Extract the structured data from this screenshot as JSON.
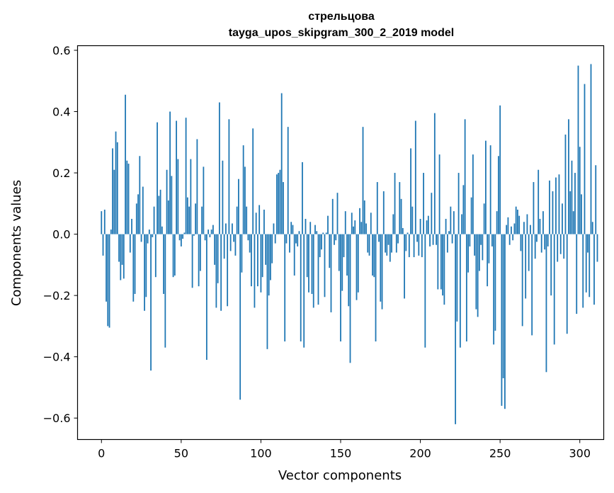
{
  "chart_data": {
    "type": "bar",
    "title": "стрельцова",
    "subtitle": "tayga_upos_skipgram_300_2_2019 model",
    "xlabel": "Vector components",
    "ylabel": "Components values",
    "xlim": [
      -15,
      315
    ],
    "ylim": [
      -0.67,
      0.615
    ],
    "xticks": [
      0,
      50,
      100,
      150,
      200,
      250,
      300
    ],
    "yticks": [
      -0.6,
      -0.4,
      -0.2,
      0.0,
      0.2,
      0.4,
      0.6
    ],
    "ytick_labels": [
      "−0.6",
      "−0.4",
      "−0.2",
      "0.0",
      "0.2",
      "0.4",
      "0.6"
    ],
    "bar_color": "#1f77b4",
    "values": [
      0.075,
      -0.07,
      0.08,
      -0.22,
      -0.3,
      -0.305,
      0.015,
      0.28,
      0.21,
      0.335,
      0.3,
      -0.09,
      -0.15,
      -0.1,
      -0.145,
      0.455,
      0.24,
      0.23,
      -0.06,
      0.05,
      -0.22,
      -0.195,
      0.1,
      0.13,
      0.255,
      -0.025,
      0.155,
      -0.25,
      -0.205,
      -0.03,
      0.015,
      -0.445,
      -0.01,
      0.09,
      -0.14,
      0.365,
      0.125,
      0.145,
      0.025,
      -0.195,
      -0.37,
      0.21,
      0.11,
      0.4,
      0.19,
      -0.14,
      -0.135,
      0.37,
      0.245,
      -0.02,
      -0.04,
      -0.015,
      0.005,
      0.38,
      0.12,
      0.09,
      0.245,
      -0.175,
      -0.005,
      0.1,
      0.31,
      -0.17,
      -0.12,
      0.09,
      0.22,
      -0.02,
      -0.41,
      0.015,
      -0.01,
      0.015,
      0.03,
      -0.1,
      -0.24,
      -0.16,
      0.43,
      -0.25,
      0.24,
      -0.08,
      0.035,
      -0.235,
      0.375,
      -0.055,
      0.035,
      -0.025,
      -0.07,
      0.09,
      0.18,
      -0.54,
      -0.125,
      0.29,
      0.22,
      0.09,
      -0.02,
      -0.06,
      -0.17,
      0.345,
      -0.24,
      0.07,
      -0.17,
      0.095,
      -0.19,
      -0.14,
      0.08,
      -0.1,
      -0.375,
      -0.2,
      -0.15,
      -0.095,
      0.035,
      -0.03,
      0.195,
      0.2,
      0.21,
      0.46,
      0.17,
      -0.35,
      -0.03,
      0.35,
      -0.06,
      0.04,
      0.03,
      -0.135,
      -0.03,
      -0.04,
      0.01,
      -0.35,
      0.235,
      -0.37,
      0.05,
      -0.14,
      -0.19,
      0.04,
      -0.195,
      -0.24,
      0.03,
      0.01,
      -0.23,
      -0.075,
      -0.05,
      0.005,
      -0.205,
      0.005,
      0.06,
      -0.11,
      -0.255,
      0.115,
      -0.035,
      -0.02,
      0.135,
      -0.12,
      -0.35,
      -0.185,
      -0.075,
      0.075,
      -0.135,
      -0.235,
      -0.42,
      0.07,
      0.025,
      0.045,
      -0.215,
      -0.19,
      0.085,
      0.04,
      0.35,
      0.11,
      0.035,
      -0.06,
      -0.07,
      0.07,
      -0.135,
      -0.14,
      -0.35,
      0.17,
      -0.025,
      -0.22,
      -0.245,
      0.14,
      -0.06,
      -0.07,
      -0.035,
      -0.09,
      -0.06,
      0.065,
      0.2,
      -0.06,
      -0.03,
      0.17,
      0.115,
      0.02,
      -0.21,
      -0.055,
      0.005,
      -0.075,
      0.28,
      0.09,
      -0.075,
      0.37,
      -0.025,
      -0.07,
      0.05,
      -0.075,
      0.2,
      -0.37,
      0.045,
      0.06,
      -0.04,
      0.135,
      -0.035,
      0.395,
      -0.035,
      -0.18,
      0.26,
      -0.18,
      -0.2,
      -0.23,
      0.05,
      -0.06,
      0.01,
      0.09,
      -0.03,
      0.075,
      -0.62,
      -0.285,
      0.2,
      -0.37,
      0.065,
      0.16,
      0.375,
      -0.35,
      -0.125,
      -0.04,
      0.12,
      0.26,
      -0.07,
      -0.245,
      -0.27,
      -0.12,
      -0.035,
      -0.085,
      0.1,
      0.305,
      -0.17,
      -0.095,
      0.29,
      -0.04,
      -0.36,
      -0.315,
      0.075,
      0.255,
      0.42,
      -0.56,
      -0.47,
      -0.57,
      0.03,
      0.055,
      -0.035,
      0.025,
      -0.02,
      0.035,
      0.09,
      0.08,
      0.06,
      -0.055,
      -0.3,
      0.04,
      -0.21,
      0.065,
      -0.12,
      0.03,
      -0.33,
      0.17,
      -0.08,
      -0.025,
      0.21,
      0.05,
      -0.06,
      0.075,
      -0.05,
      -0.45,
      -0.04,
      0.175,
      -0.2,
      0.14,
      -0.36,
      0.185,
      -0.09,
      0.195,
      -0.065,
      0.1,
      -0.08,
      0.325,
      -0.325,
      0.375,
      0.14,
      0.24,
      0.075,
      0.2,
      -0.26,
      0.55,
      0.285,
      0.13,
      -0.24,
      0.49,
      -0.19,
      -0.06,
      -0.205,
      0.555,
      0.04,
      -0.23,
      0.225,
      -0.09
    ]
  }
}
